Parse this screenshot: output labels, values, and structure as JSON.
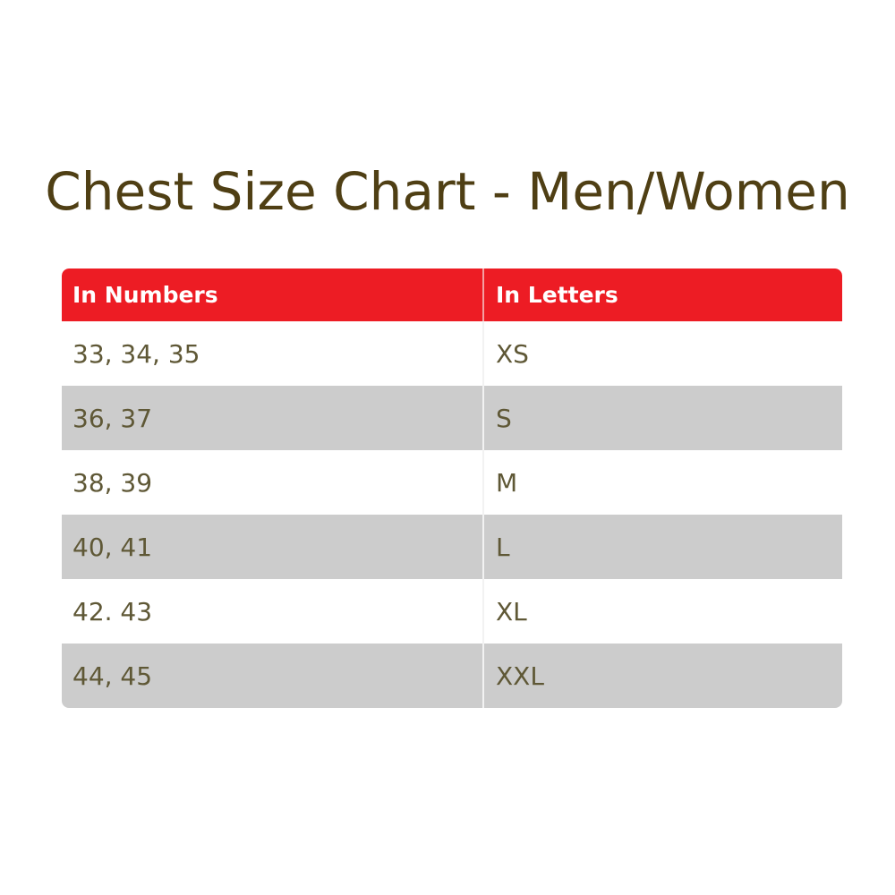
{
  "title": "Chest Size Chart - Men/Women",
  "colors": {
    "header": "#ed1c24",
    "stripe": "#cccccc",
    "title": "#4f3f14",
    "text": "#5f5836"
  },
  "table": {
    "headers": [
      "In Numbers",
      "In Letters"
    ],
    "rows": [
      [
        "33, 34, 35",
        "XS"
      ],
      [
        "36, 37",
        "S"
      ],
      [
        "38, 39",
        "M"
      ],
      [
        "40, 41",
        "L"
      ],
      [
        "42. 43",
        "XL"
      ],
      [
        "44, 45",
        "XXL"
      ]
    ]
  }
}
